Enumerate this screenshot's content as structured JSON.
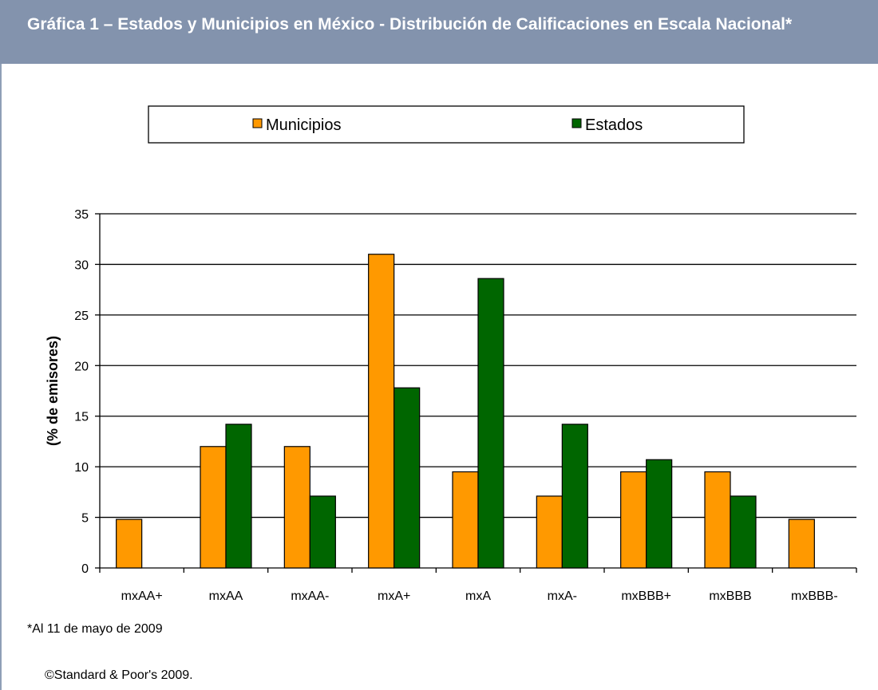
{
  "header": {
    "title": "Gráfica 1 – Estados y Municipios en México - Distribución de Calificaciones en Escala Nacional*"
  },
  "colors": {
    "header_bg": "#8393ad",
    "municipios": "#ff9900",
    "estados": "#006600"
  },
  "chart_data": {
    "type": "bar",
    "title": "",
    "xlabel": "",
    "ylabel": "(% de emisores)",
    "categories": [
      "mxAA+",
      "mxAA",
      "mxAA-",
      "mxA+",
      "mxA",
      "mxA-",
      "mxBBB+",
      "mxBBB",
      "mxBBB-"
    ],
    "series": [
      {
        "name": "Municipios",
        "values": [
          4.8,
          12.0,
          12.0,
          31.0,
          9.5,
          7.1,
          9.5,
          9.5,
          4.8
        ]
      },
      {
        "name": "Estados",
        "values": [
          0,
          14.2,
          7.1,
          17.8,
          28.6,
          14.2,
          10.7,
          7.1,
          0
        ]
      }
    ],
    "ylim": [
      0,
      35
    ],
    "yticks": [
      0,
      5,
      10,
      15,
      20,
      25,
      30,
      35
    ],
    "grid": true,
    "legend_position": "top"
  },
  "footnote": "*Al 11 de mayo de 2009",
  "copyright": "©Standard & Poor's 2009."
}
